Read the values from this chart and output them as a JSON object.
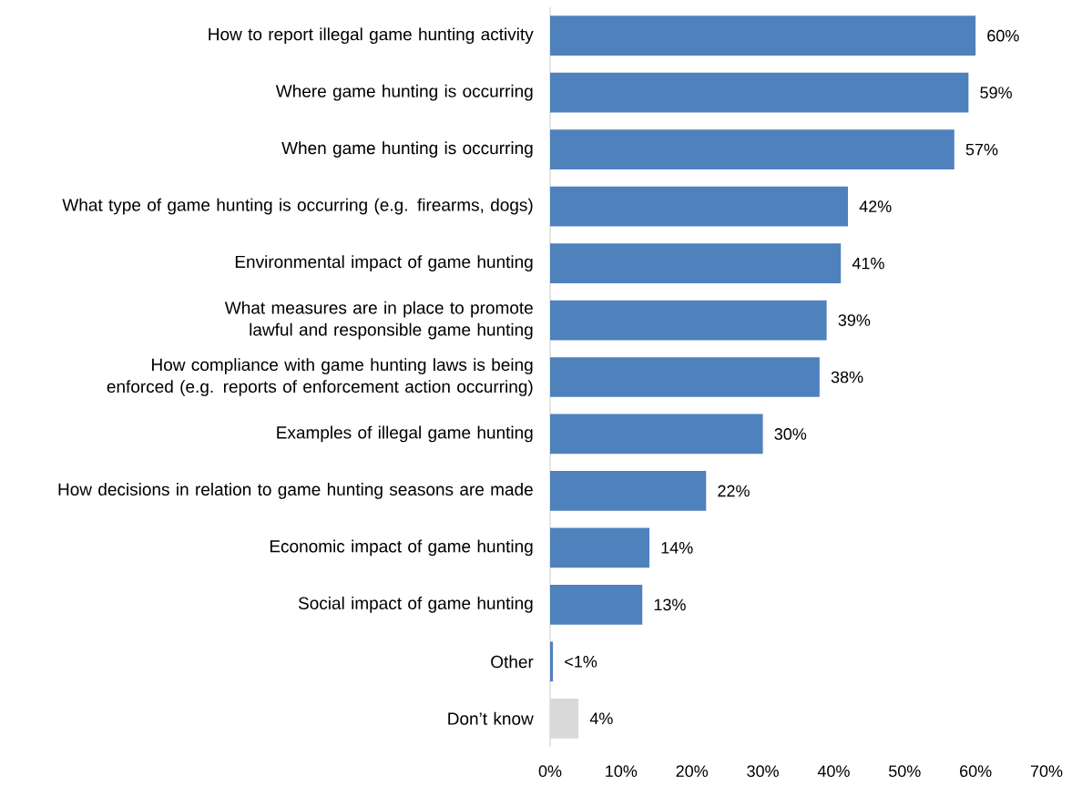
{
  "chart_data": {
    "type": "bar",
    "orientation": "horizontal",
    "categories": [
      "How to report illegal game hunting activity",
      "Where game hunting is occurring",
      "When game hunting is occurring",
      "What type of game hunting is occurring (e.g. firearms, dogs)",
      "Environmental impact of game hunting",
      "What measures are in place to promote lawful and responsible game hunting",
      "How compliance with game hunting laws is being enforced (e.g. reports of enforcement action occurring)",
      "Examples of illegal game hunting",
      "How decisions in relation to game hunting seasons are made",
      "Economic impact of game hunting",
      "Social impact of game hunting",
      "Other",
      "Don’t know"
    ],
    "values": [
      60,
      59,
      57,
      42,
      41,
      39,
      38,
      30,
      22,
      14,
      13,
      0.4,
      4
    ],
    "value_labels": [
      "60%",
      "59%",
      "57%",
      "42%",
      "41%",
      "39%",
      "38%",
      "30%",
      "22%",
      "14%",
      "13%",
      "<1%",
      "4%"
    ],
    "colors": [
      "#4f81bd",
      "#4f81bd",
      "#4f81bd",
      "#4f81bd",
      "#4f81bd",
      "#4f81bd",
      "#4f81bd",
      "#4f81bd",
      "#4f81bd",
      "#4f81bd",
      "#4f81bd",
      "#4f81bd",
      "#d9d9d9"
    ],
    "xlim": [
      0,
      70
    ],
    "xticks": [
      {
        "value": 0,
        "label": "0%"
      },
      {
        "value": 10,
        "label": "10%"
      },
      {
        "value": 20,
        "label": "20%"
      },
      {
        "value": 30,
        "label": "30%"
      },
      {
        "value": 40,
        "label": "40%"
      },
      {
        "value": 50,
        "label": "50%"
      },
      {
        "value": 60,
        "label": "60%"
      },
      {
        "value": 70,
        "label": "70%"
      }
    ]
  }
}
